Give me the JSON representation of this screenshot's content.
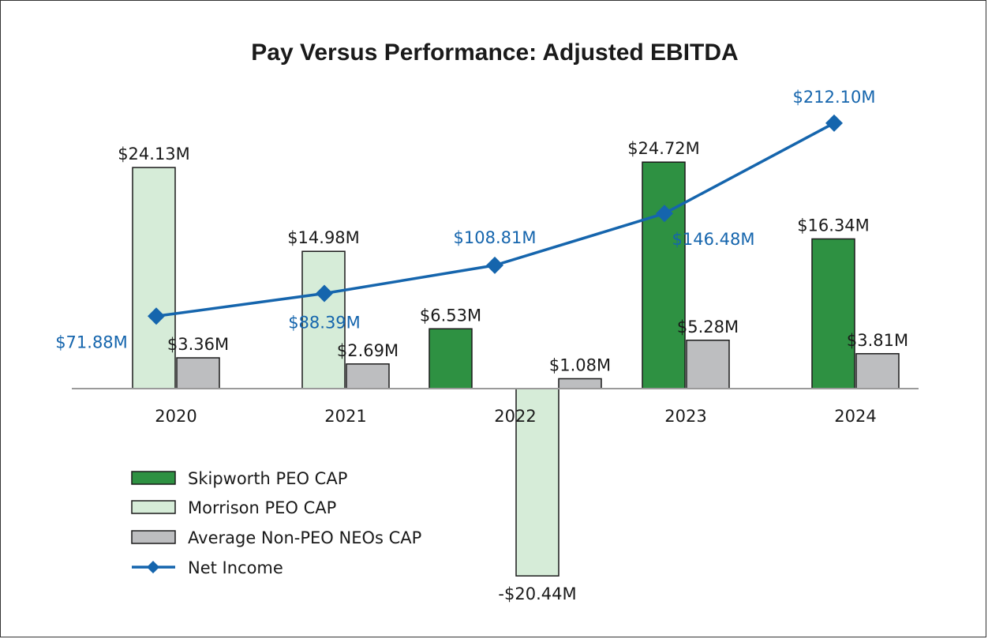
{
  "chart_data": {
    "type": "bar",
    "title": "Pay Versus Performance: Adjusted EBITDA",
    "categories": [
      "2020",
      "2021",
      "2022",
      "2023",
      "2024"
    ],
    "series": [
      {
        "name": "Skipworth PEO CAP",
        "kind": "bar",
        "color": "#2e9142",
        "values": [
          null,
          null,
          6.53,
          24.72,
          16.34
        ],
        "labels": [
          null,
          null,
          "$6.53M",
          "$24.72M",
          "$16.34M"
        ]
      },
      {
        "name": "Morrison PEO CAP",
        "kind": "bar",
        "color": "#d6ecd8",
        "values": [
          24.13,
          14.98,
          -20.44,
          null,
          null
        ],
        "labels": [
          "$24.13M",
          "$14.98M",
          "-$20.44M",
          null,
          null
        ]
      },
      {
        "name": "Average Non-PEO NEOs CAP",
        "kind": "bar",
        "color": "#bdbec0",
        "values": [
          3.36,
          2.69,
          1.08,
          5.28,
          3.81
        ],
        "labels": [
          "$3.36M",
          "$2.69M",
          "$1.08M",
          "$5.28M",
          "$3.81M"
        ]
      },
      {
        "name": "Net Income",
        "kind": "line",
        "color": "#1565ad",
        "values": [
          71.88,
          88.39,
          108.81,
          146.48,
          212.1
        ],
        "labels": [
          "$71.88M",
          "$88.39M",
          "$108.81M",
          "$146.48M",
          "$212.10M"
        ]
      }
    ],
    "bar_axis": {
      "ylim": [
        -22,
        26
      ]
    },
    "line_axis": {
      "ylim": [
        -100,
        300
      ]
    },
    "legend": "bottom-left",
    "grid": false
  }
}
